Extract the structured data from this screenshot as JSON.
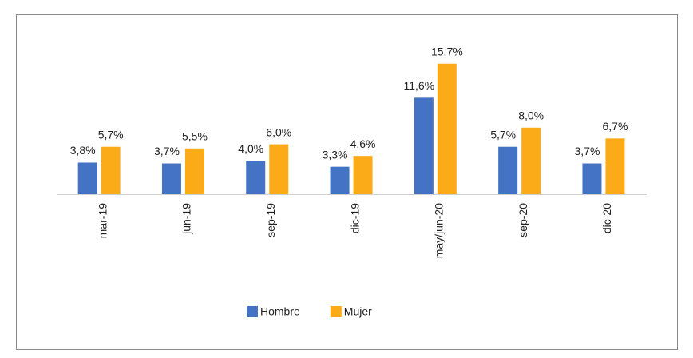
{
  "chart_data": {
    "type": "bar",
    "categories": [
      "mar-19",
      "jun-19",
      "sep-19",
      "dic-19",
      "may/jun-20",
      "sep-20",
      "dic-20"
    ],
    "series": [
      {
        "name": "Hombre",
        "color": "#4472c4",
        "values": [
          3.8,
          3.7,
          4.0,
          3.3,
          11.6,
          5.7,
          3.7
        ],
        "value_labels": [
          "3,8%",
          "3,7%",
          "4,0%",
          "3,3%",
          "11,6%",
          "5,7%",
          "3,7%"
        ]
      },
      {
        "name": "Mujer",
        "color": "#fbab18",
        "values": [
          5.7,
          5.5,
          6.0,
          4.6,
          15.7,
          8.0,
          6.7
        ],
        "value_labels": [
          "5,7%",
          "5,5%",
          "6,0%",
          "4,6%",
          "15,7%",
          "8,0%",
          "6,7%"
        ]
      }
    ],
    "legend": "bottom"
  }
}
